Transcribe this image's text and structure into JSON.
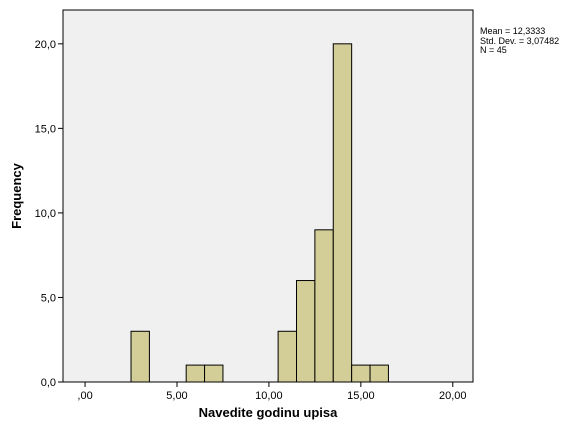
{
  "chart_data": {
    "type": "bar",
    "xlabel": "Navedite godinu upisa",
    "ylabel": "Frequency",
    "xlim": [
      -1.2,
      21.1
    ],
    "ylim": [
      0,
      22.0
    ],
    "x_ticks": [
      ",00",
      "5,00",
      "10,00",
      "15,00",
      "20,00"
    ],
    "y_ticks": [
      "0,0",
      "5,0",
      "10,0",
      "15,0",
      "20,0"
    ],
    "bin_width": 1,
    "bins": [
      {
        "x": 3,
        "count": 3
      },
      {
        "x": 6,
        "count": 1
      },
      {
        "x": 7,
        "count": 1
      },
      {
        "x": 11,
        "count": 3
      },
      {
        "x": 12,
        "count": 6
      },
      {
        "x": 13,
        "count": 9
      },
      {
        "x": 14,
        "count": 20
      },
      {
        "x": 15,
        "count": 1
      },
      {
        "x": 16,
        "count": 1
      }
    ],
    "grid": false,
    "colors": {
      "plot_bg": "#f0f0f0",
      "bar_fill": "#d3ce97",
      "bar_stroke": "#000000"
    }
  },
  "stats": {
    "mean": "Mean = 12,3333",
    "std_dev": "Std. Dev. = 3,07482",
    "n": "N = 45"
  }
}
